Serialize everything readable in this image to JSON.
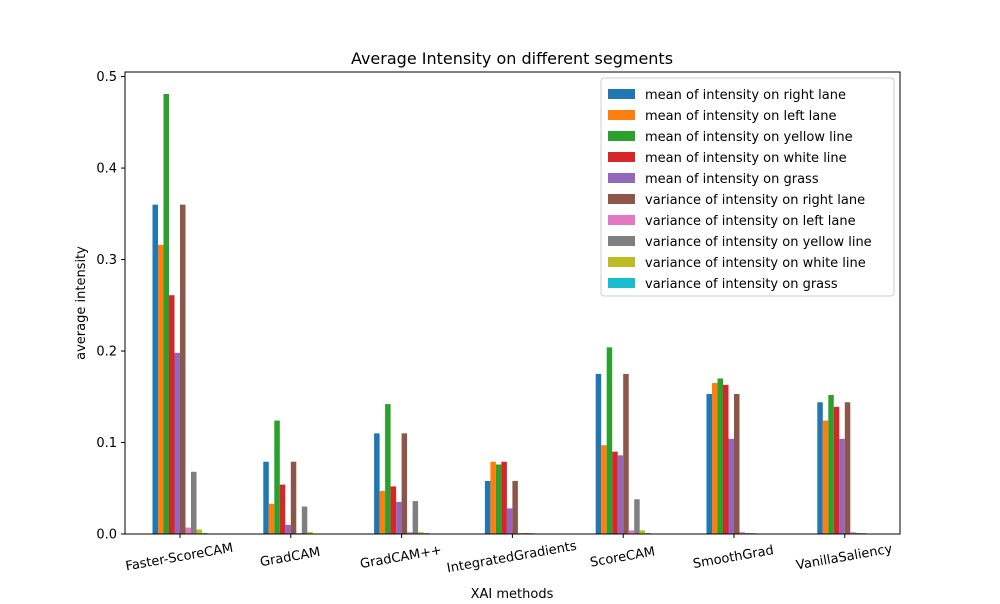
{
  "chart_data": {
    "type": "bar",
    "title": "Average Intensity on different segments",
    "xlabel": "XAI methods",
    "ylabel": "average intensity",
    "ylim": [
      0,
      0.505
    ],
    "yticks": [
      0.0,
      0.1,
      0.2,
      0.3,
      0.4,
      0.5
    ],
    "ytick_labels": [
      "0.0",
      "0.1",
      "0.2",
      "0.3",
      "0.4",
      "0.5"
    ],
    "grid": false,
    "legend_position": "top-right",
    "categories": [
      "Faster-ScoreCAM",
      "GradCAM",
      "GradCAM++",
      "IntegratedGradients",
      "ScoreCAM",
      "SmoothGrad",
      "VanillaSaliency"
    ],
    "series": [
      {
        "name": "mean of intensity on right lane",
        "color": "#1f77b4",
        "values": [
          0.36,
          0.079,
          0.11,
          0.058,
          0.175,
          0.153,
          0.144
        ]
      },
      {
        "name": "mean of intensity on left lane",
        "color": "#ff7f0e",
        "values": [
          0.316,
          0.033,
          0.047,
          0.079,
          0.097,
          0.165,
          0.124
        ]
      },
      {
        "name": "mean of intensity on yellow line",
        "color": "#2ca02c",
        "values": [
          0.481,
          0.124,
          0.142,
          0.076,
          0.204,
          0.17,
          0.152
        ]
      },
      {
        "name": "mean of intensity on white line",
        "color": "#d62728",
        "values": [
          0.261,
          0.054,
          0.052,
          0.079,
          0.09,
          0.163,
          0.139
        ]
      },
      {
        "name": "mean of intensity on grass",
        "color": "#9467bd",
        "values": [
          0.198,
          0.01,
          0.035,
          0.028,
          0.086,
          0.104,
          0.104
        ]
      },
      {
        "name": "variance of intensity on right lane",
        "color": "#8c564b",
        "values": [
          0.36,
          0.079,
          0.11,
          0.058,
          0.175,
          0.153,
          0.144
        ]
      },
      {
        "name": "variance of intensity on left lane",
        "color": "#e377c2",
        "values": [
          0.007,
          0.001,
          0.002,
          0.001,
          0.004,
          0.002,
          0.002
        ]
      },
      {
        "name": "variance of intensity on yellow line",
        "color": "#7f7f7f",
        "values": [
          0.068,
          0.03,
          0.036,
          0.001,
          0.038,
          0.001,
          0.001
        ]
      },
      {
        "name": "variance of intensity on white line",
        "color": "#bcbd22",
        "values": [
          0.005,
          0.002,
          0.002,
          0.001,
          0.004,
          0.001,
          0.001
        ]
      },
      {
        "name": "variance of intensity on grass",
        "color": "#17becf",
        "values": [
          0.001,
          0.0,
          0.001,
          0.0,
          0.001,
          0.0,
          0.0
        ]
      }
    ]
  }
}
